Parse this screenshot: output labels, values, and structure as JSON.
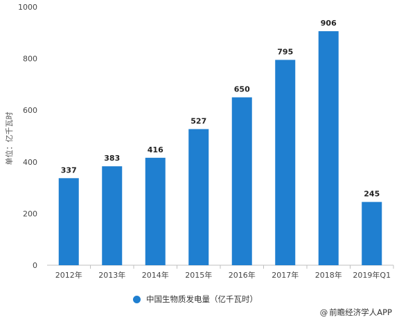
{
  "chart_data": {
    "type": "bar",
    "categories": [
      "2012年",
      "2013年",
      "2014年",
      "2015年",
      "2016年",
      "2017年",
      "2018年",
      "2019年Q1"
    ],
    "series": [
      {
        "name": "中国生物质发电量（亿千瓦时）",
        "values": [
          337,
          383,
          416,
          527,
          650,
          795,
          906,
          245
        ],
        "color": "#1f7fd0"
      }
    ],
    "data_labels": [
      "337",
      "383",
      "416",
      "527",
      "650",
      "795",
      "906",
      "245"
    ],
    "ylabel": "单位：亿千瓦时",
    "xlabel": "",
    "ylim": [
      0,
      1000
    ],
    "yticks": [
      "0",
      "200",
      "400",
      "600",
      "800",
      "1000"
    ],
    "grid": false,
    "legend_position": "bottom"
  },
  "legend": {
    "label": "中国生物质发电量（亿千瓦时）"
  },
  "watermark": {
    "symbol": "@",
    "text": "前瞻经济学人APP"
  }
}
